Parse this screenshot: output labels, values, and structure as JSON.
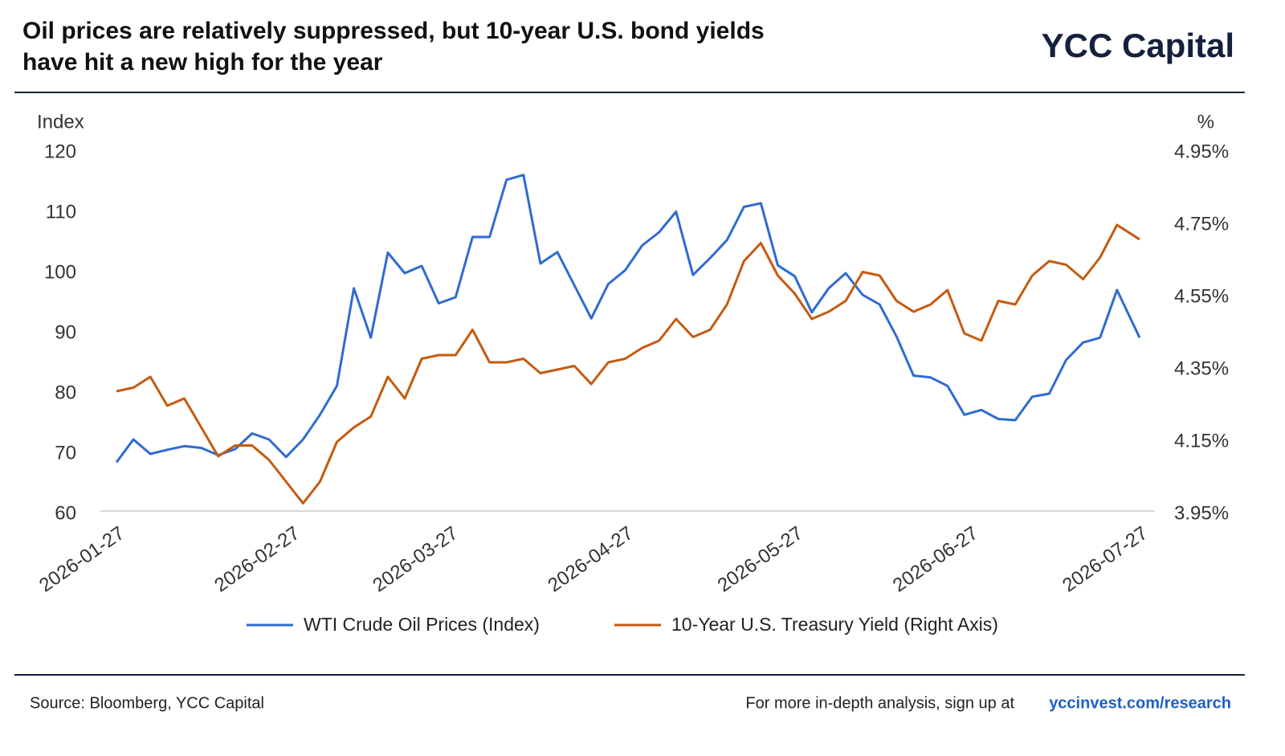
{
  "header": {
    "brand": "YCC Capital"
  },
  "footer": {
    "source": "Source: Bloomberg, YCC Capital",
    "cta": "For more in-depth analysis, sign up at",
    "link": "yccinvest.com/research"
  },
  "chart_data": {
    "type": "line",
    "title": [
      "Oil prices are relatively suppressed, but 10-year U.S. bond yields",
      "have hit a new high for the year"
    ],
    "y_label": "Index",
    "y2_label": "%",
    "x": [
      "2026-01-27",
      "2026-01-30",
      "2026-02-02",
      "2026-02-05",
      "2026-02-08",
      "2026-02-11",
      "2026-02-14",
      "2026-02-17",
      "2026-02-20",
      "2026-02-23",
      "2026-02-26",
      "2026-03-01",
      "2026-03-04",
      "2026-03-07",
      "2026-03-10",
      "2026-03-13",
      "2026-03-16",
      "2026-03-19",
      "2026-03-22",
      "2026-03-25",
      "2026-03-28",
      "2026-03-31",
      "2026-04-03",
      "2026-04-06",
      "2026-04-09",
      "2026-04-12",
      "2026-04-15",
      "2026-04-18",
      "2026-04-21",
      "2026-04-24",
      "2026-04-27",
      "2026-04-30",
      "2026-05-03",
      "2026-05-06",
      "2026-05-09",
      "2026-05-12",
      "2026-05-15",
      "2026-05-18",
      "2026-05-21",
      "2026-05-24",
      "2026-05-27",
      "2026-05-30",
      "2026-06-02",
      "2026-06-05",
      "2026-06-08",
      "2026-06-11",
      "2026-06-14",
      "2026-06-17",
      "2026-06-20",
      "2026-06-23",
      "2026-06-26",
      "2026-06-29",
      "2026-07-02",
      "2026-07-05",
      "2026-07-08",
      "2026-07-11",
      "2026-07-14",
      "2026-07-17",
      "2026-07-20",
      "2026-07-23",
      "2026-07-27"
    ],
    "xlim": [
      "2026-01-27",
      "2026-07-27"
    ],
    "xticks": [
      "2026-01-27",
      "2026-02-27",
      "2026-03-27",
      "2026-04-27",
      "2026-05-27",
      "2026-06-27",
      "2026-07-27"
    ],
    "ylim": [
      60,
      120
    ],
    "yticks": [
      60,
      70,
      80,
      90,
      100,
      110,
      120
    ],
    "y2lim": [
      3.95,
      4.95
    ],
    "y2ticks": [
      {
        "value": 3.95,
        "label": "3.95%"
      },
      {
        "value": 4.15,
        "label": "4.15%"
      },
      {
        "value": 4.35,
        "label": "4.35%"
      },
      {
        "value": 4.55,
        "label": "4.55%"
      },
      {
        "value": 4.75,
        "label": "4.75%"
      },
      {
        "value": 4.95,
        "label": "4.95%"
      }
    ],
    "series": [
      {
        "name": "WTI Crude Oil Prices (Index)",
        "color": "#2f6bd1",
        "values": [
          68.6,
          72.4,
          70.0,
          70.7,
          71.3,
          71.0,
          69.8,
          70.8,
          73.4,
          72.4,
          69.5,
          72.4,
          76.5,
          81.3,
          97.5,
          89.3,
          103.4,
          100,
          101.2,
          95,
          96,
          106,
          106,
          115.5,
          116.3,
          101.6,
          103.5,
          98,
          92.5,
          98.2,
          100.5,
          104.6,
          106.8,
          110.2,
          99.7,
          102.5,
          105.5,
          111,
          111.6,
          101.3,
          99.5,
          93.5,
          97.5,
          100,
          96.4,
          94.8,
          89.5,
          83,
          82.7,
          81.3,
          76.5,
          77.3,
          75.8,
          75.6,
          79.5,
          80,
          85.6,
          88.5,
          89.3,
          97.2,
          89.3
        ]
      },
      {
        "name": "10-Year U.S. Treasury Yield (Right Axis)",
        "color": "#c55a11",
        "axis": "y2",
        "values": [
          4.29,
          4.3,
          4.33,
          4.25,
          4.27,
          4.19,
          4.11,
          4.14,
          4.14,
          4.1,
          4.04,
          3.98,
          4.04,
          4.15,
          4.19,
          4.22,
          4.33,
          4.27,
          4.38,
          4.39,
          4.39,
          4.46,
          4.37,
          4.37,
          4.38,
          4.34,
          4.35,
          4.36,
          4.31,
          4.37,
          4.38,
          4.41,
          4.43,
          4.49,
          4.44,
          4.46,
          4.53,
          4.65,
          4.7,
          4.61,
          4.56,
          4.49,
          4.51,
          4.54,
          4.62,
          4.61,
          4.54,
          4.51,
          4.53,
          4.57,
          4.45,
          4.43,
          4.54,
          4.53,
          4.61,
          4.65,
          4.64,
          4.6,
          4.66,
          4.75,
          4.71
        ]
      }
    ]
  }
}
